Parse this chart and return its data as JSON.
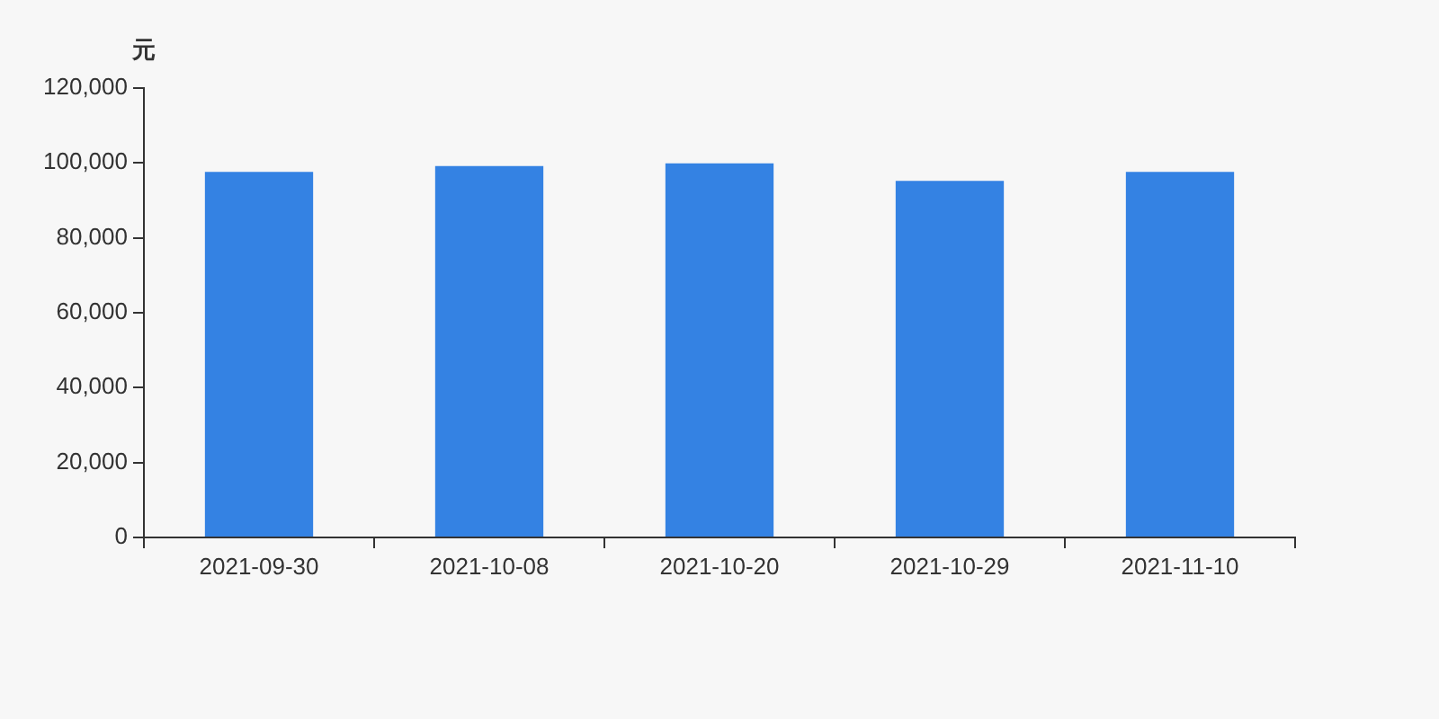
{
  "chart_data": {
    "type": "bar",
    "ylabel": "元",
    "categories": [
      "2021-09-30",
      "2021-10-08",
      "2021-10-20",
      "2021-10-29",
      "2021-11-10"
    ],
    "series": [
      {
        "color": "#3482e3",
        "values": [
          97600,
          99200,
          99900,
          95200,
          97600
        ]
      }
    ],
    "ylim": [
      0,
      120000
    ],
    "yticks": [
      0,
      {
        "value": 20000,
        "label": "20,000"
      },
      {
        "value": 40000,
        "label": "40,000"
      },
      {
        "value": 60000,
        "label": "60,000"
      },
      {
        "value": 80000,
        "label": "80,000"
      },
      {
        "value": 100000,
        "label": "100,000"
      },
      {
        "value": 120000,
        "label": "120,000"
      }
    ],
    "grid": false,
    "legend": false
  }
}
